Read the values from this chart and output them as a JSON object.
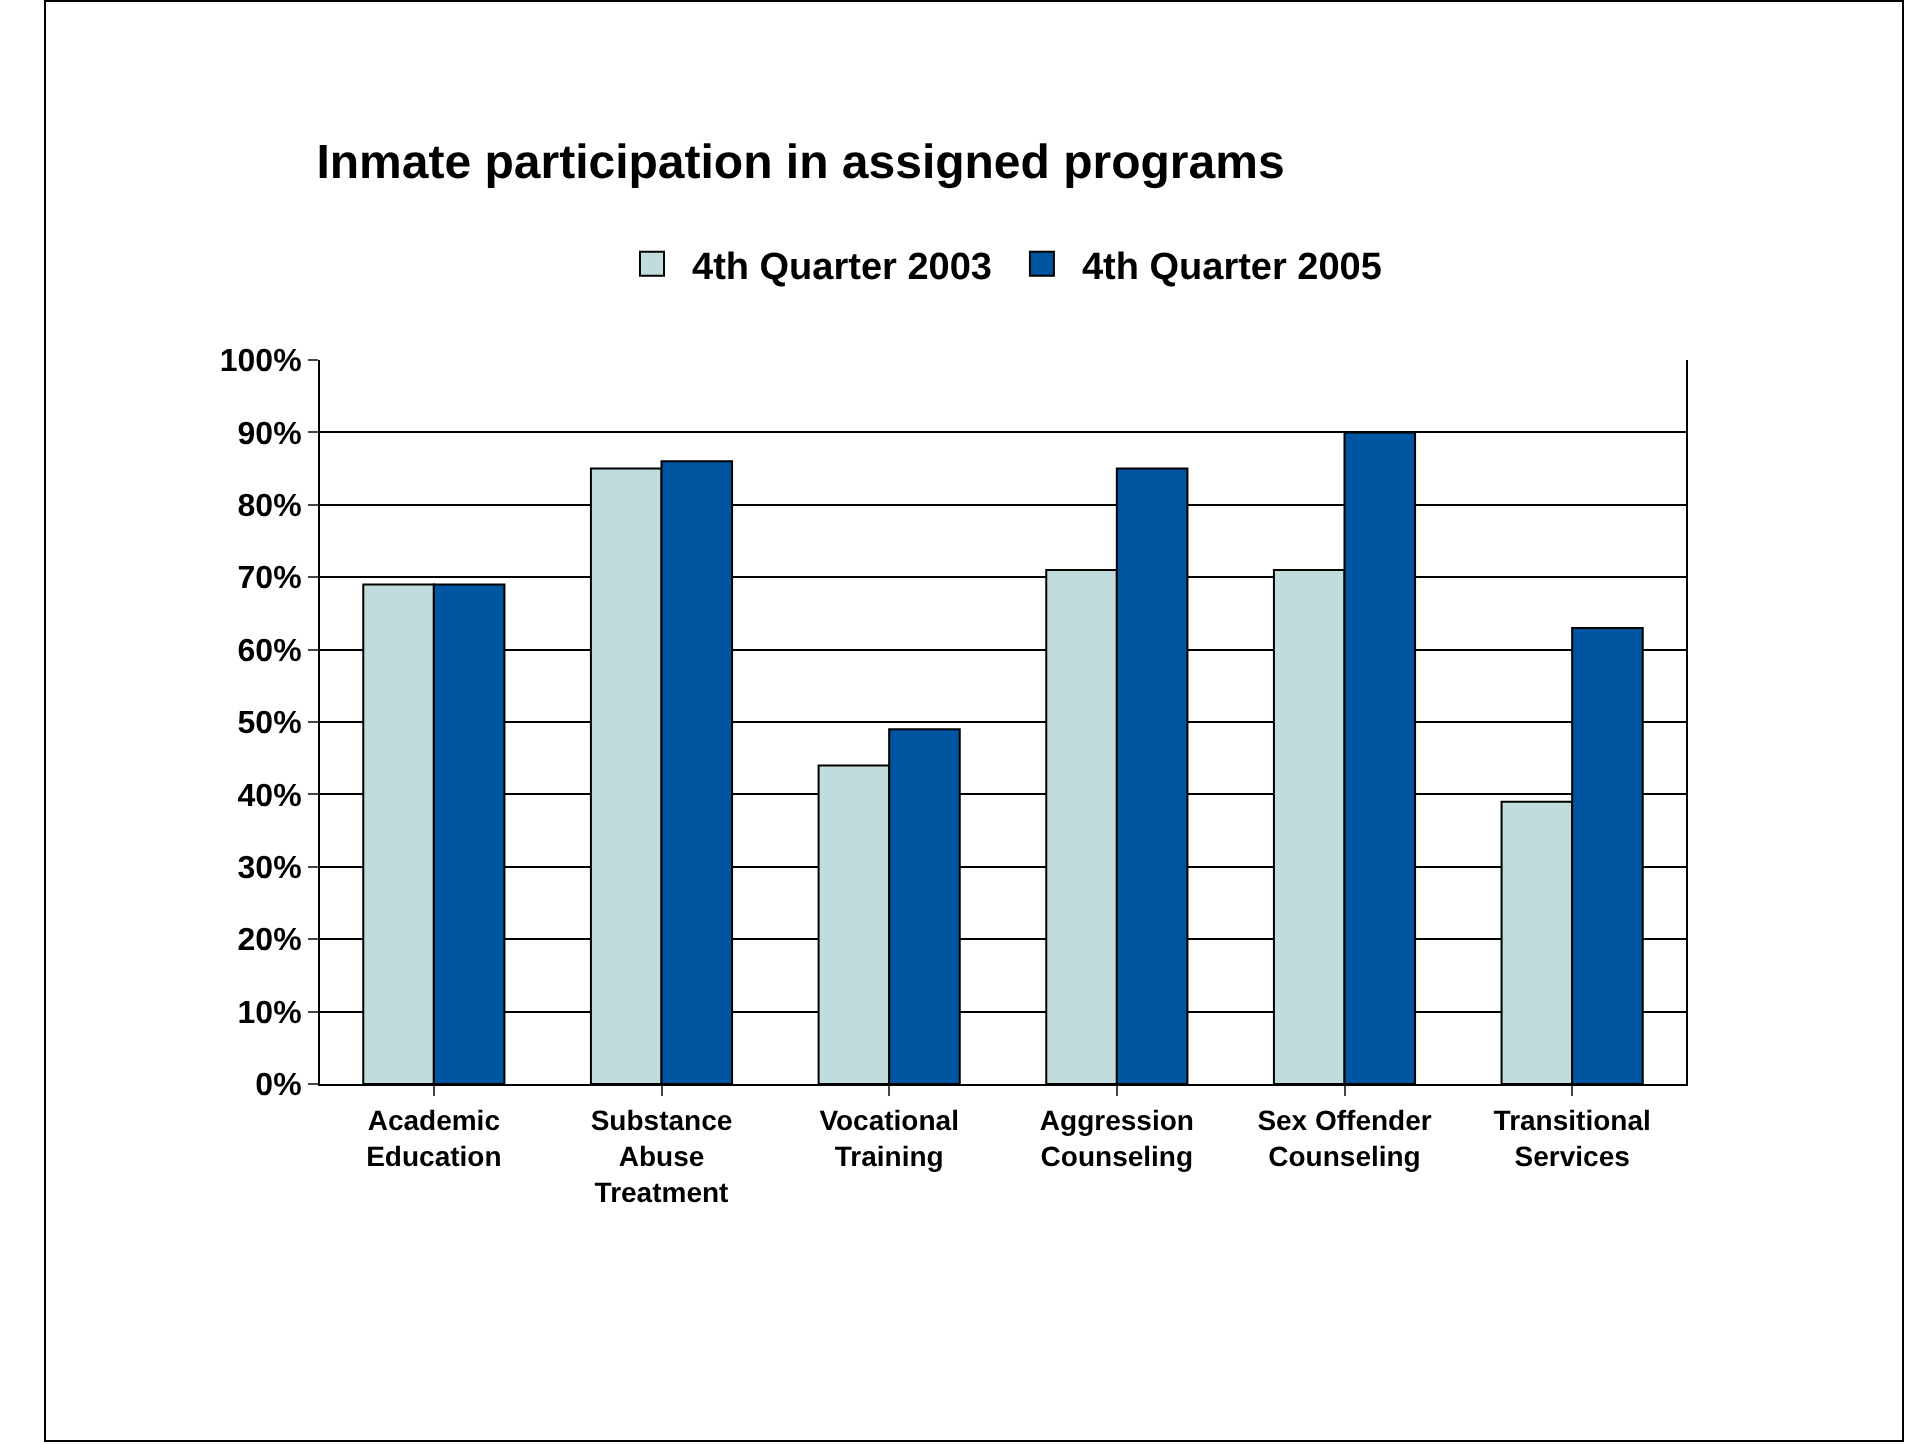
{
  "chart_data": {
    "type": "bar",
    "title": "Inmate participation in assigned programs",
    "categories": [
      "Academic Education",
      "Substance Abuse Treatment",
      "Vocational Training",
      "Aggression Counseling",
      "Sex Offender Counseling",
      "Transitional Services"
    ],
    "series": [
      {
        "name": "4th Quarter 2003",
        "color": "#c0dcdc",
        "values": [
          69,
          85,
          44,
          71,
          71,
          39
        ]
      },
      {
        "name": "4th Quarter 2005",
        "color": "#0055a0",
        "values": [
          69,
          86,
          49,
          85,
          90,
          63
        ]
      }
    ],
    "ylim": [
      0,
      100
    ],
    "yticks": [
      {
        "value": 0,
        "label": "0%"
      },
      {
        "value": 10,
        "label": "10%"
      },
      {
        "value": 20,
        "label": "20%"
      },
      {
        "value": 30,
        "label": "30%"
      },
      {
        "value": 40,
        "label": "40%"
      },
      {
        "value": 50,
        "label": "50%"
      },
      {
        "value": 60,
        "label": "60%"
      },
      {
        "value": 70,
        "label": "70%"
      },
      {
        "value": 80,
        "label": "80%"
      },
      {
        "value": 90,
        "label": "90%"
      },
      {
        "value": 100,
        "label": "100%"
      }
    ],
    "grid": "y",
    "legend": "top"
  }
}
